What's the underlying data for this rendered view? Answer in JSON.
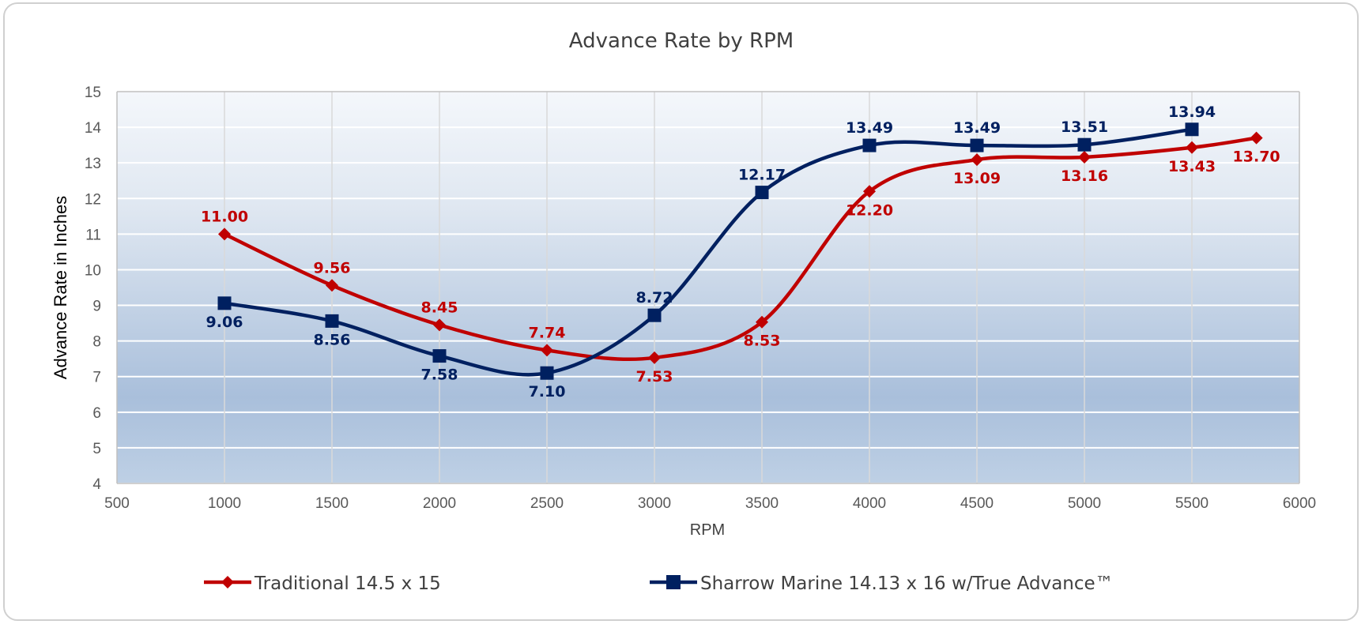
{
  "chart_data": {
    "type": "line",
    "title": "Advance Rate by RPM",
    "xlabel": "RPM",
    "ylabel": "Advance Rate in Inches",
    "xlim": [
      500,
      6000
    ],
    "ylim": [
      4,
      15
    ],
    "xticks": [
      500,
      1000,
      1500,
      2000,
      2500,
      3000,
      3500,
      4000,
      4500,
      5000,
      5500,
      6000
    ],
    "yticks": [
      4,
      5,
      6,
      7,
      8,
      9,
      10,
      11,
      12,
      13,
      14,
      15
    ],
    "grid": true,
    "legend_position": "bottom",
    "series": [
      {
        "name": "Traditional 14.5 x 15",
        "color": "#c00000",
        "marker": "diamond",
        "x": [
          1000,
          1500,
          2000,
          2500,
          3000,
          3500,
          4000,
          4500,
          5000,
          5500,
          5800
        ],
        "values": [
          11.0,
          9.56,
          8.45,
          7.74,
          7.53,
          8.53,
          12.2,
          13.09,
          13.16,
          13.43,
          13.7
        ],
        "labels": [
          "11.00",
          "9.56",
          "8.45",
          "7.74",
          "7.53",
          "8.53",
          "12.20",
          "13.09",
          "13.16",
          "13.43",
          "13.70"
        ],
        "label_pos": [
          "above",
          "above",
          "above",
          "above",
          "below",
          "below",
          "below",
          "below",
          "below",
          "below",
          "below"
        ]
      },
      {
        "name": "Sharrow Marine 14.13 x 16 w/True Advance™",
        "color": "#002060",
        "marker": "square",
        "x": [
          1000,
          1500,
          2000,
          2500,
          3000,
          3500,
          4000,
          4500,
          5000,
          5500
        ],
        "values": [
          9.06,
          8.56,
          7.58,
          7.1,
          8.72,
          12.17,
          13.49,
          13.49,
          13.51,
          13.94
        ],
        "labels": [
          "9.06",
          "8.56",
          "7.58",
          "7.10",
          "8.72",
          "12.17",
          "13.49",
          "13.49",
          "13.51",
          "13.94"
        ],
        "label_pos": [
          "below",
          "below",
          "below",
          "below",
          "above",
          "above",
          "above",
          "above",
          "above",
          "above"
        ]
      }
    ]
  }
}
